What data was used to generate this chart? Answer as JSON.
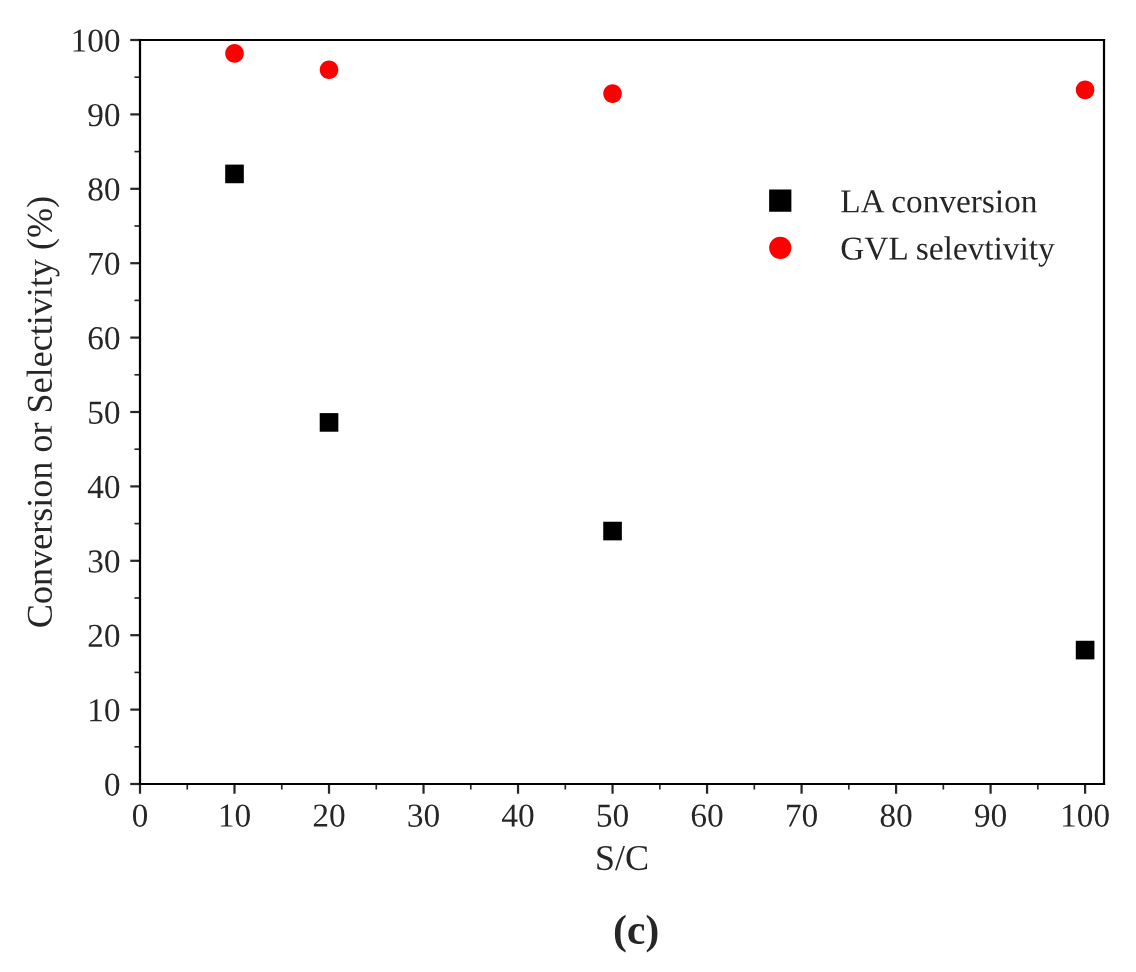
{
  "chart_data": {
    "type": "scatter",
    "xlabel": "S/C",
    "ylabel": "Conversion or Selectivity (%)",
    "x": [
      10,
      20,
      50,
      100
    ],
    "series": [
      {
        "name": "LA conversion",
        "color": "#000000",
        "marker": "square",
        "values": [
          82,
          48.6,
          34,
          18
        ]
      },
      {
        "name": "GVL selevtivity",
        "color": "#ff0000",
        "marker": "circle",
        "values": [
          98.2,
          96,
          92.8,
          93.3
        ]
      }
    ],
    "xlim": [
      0,
      102
    ],
    "xticks": [
      0,
      10,
      20,
      30,
      40,
      50,
      60,
      70,
      80,
      90,
      100
    ],
    "ylim": [
      0,
      100
    ],
    "yticks": [
      0,
      10,
      20,
      30,
      40,
      50,
      60,
      70,
      80,
      90,
      100
    ],
    "grid": false,
    "legend": "top right",
    "annotations": [
      "(c)"
    ]
  }
}
